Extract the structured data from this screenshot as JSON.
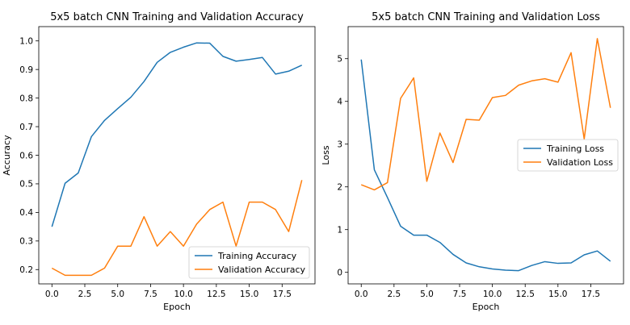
{
  "chart_data": [
    {
      "type": "line",
      "title": "5x5 batch CNN Training and Validation Accuracy",
      "xlabel": "Epoch",
      "ylabel": "Accuracy",
      "xlim": [
        -1,
        20
      ],
      "ylim": [
        0.15,
        1.05
      ],
      "xticks": [
        0.0,
        2.5,
        5.0,
        7.5,
        10.0,
        12.5,
        15.0,
        17.5
      ],
      "xtick_labels": [
        "0.0",
        "2.5",
        "5.0",
        "7.5",
        "10.0",
        "12.5",
        "15.0",
        "17.5"
      ],
      "yticks": [
        0.2,
        0.3,
        0.4,
        0.5,
        0.6,
        0.7,
        0.8,
        0.9,
        1.0
      ],
      "ytick_labels": [
        "0.2",
        "0.3",
        "0.4",
        "0.5",
        "0.6",
        "0.7",
        "0.8",
        "0.9",
        "1.0"
      ],
      "legend_position": "lower-right",
      "x": [
        0,
        1,
        2,
        3,
        4,
        5,
        6,
        7,
        8,
        9,
        10,
        11,
        12,
        13,
        14,
        15,
        16,
        17,
        18,
        19
      ],
      "series": [
        {
          "name": "Training Accuracy",
          "color": "#1f77b4",
          "values": [
            0.35,
            0.502,
            0.538,
            0.665,
            0.722,
            0.763,
            0.803,
            0.858,
            0.925,
            0.96,
            0.978,
            0.993,
            0.992,
            0.946,
            0.929,
            0.935,
            0.942,
            0.884,
            0.894,
            0.915
          ]
        },
        {
          "name": "Validation Accuracy",
          "color": "#ff7f0e",
          "values": [
            0.205,
            0.18,
            0.18,
            0.18,
            0.205,
            0.282,
            0.282,
            0.385,
            0.282,
            0.333,
            0.282,
            0.359,
            0.41,
            0.436,
            0.282,
            0.436,
            0.436,
            0.41,
            0.333,
            0.513
          ]
        }
      ]
    },
    {
      "type": "line",
      "title": "5x5 batch CNN Training and Validation Loss",
      "xlabel": "Epoch",
      "ylabel": "Loss",
      "xlim": [
        -1,
        20
      ],
      "ylim": [
        -0.27,
        5.75
      ],
      "xticks": [
        0.0,
        2.5,
        5.0,
        7.5,
        10.0,
        12.5,
        15.0,
        17.5
      ],
      "xtick_labels": [
        "0.0",
        "2.5",
        "5.0",
        "7.5",
        "10.0",
        "12.5",
        "15.0",
        "17.5"
      ],
      "yticks": [
        0,
        1,
        2,
        3,
        4,
        5
      ],
      "ytick_labels": [
        "0",
        "1",
        "2",
        "3",
        "4",
        "5"
      ],
      "legend_position": "center-right",
      "x": [
        0,
        1,
        2,
        3,
        4,
        5,
        6,
        7,
        8,
        9,
        10,
        11,
        12,
        13,
        14,
        15,
        16,
        17,
        18,
        19
      ],
      "series": [
        {
          "name": "Training Loss",
          "color": "#1f77b4",
          "values": [
            4.98,
            2.4,
            1.75,
            1.08,
            0.87,
            0.87,
            0.7,
            0.42,
            0.22,
            0.13,
            0.08,
            0.05,
            0.04,
            0.16,
            0.25,
            0.21,
            0.22,
            0.41,
            0.5,
            0.26
          ]
        },
        {
          "name": "Validation Loss",
          "color": "#ff7f0e",
          "values": [
            2.05,
            1.93,
            2.1,
            4.07,
            4.55,
            2.13,
            3.26,
            2.57,
            3.58,
            3.56,
            4.09,
            4.14,
            4.38,
            4.48,
            4.53,
            4.45,
            5.14,
            3.12,
            5.47,
            3.85
          ]
        }
      ]
    }
  ]
}
